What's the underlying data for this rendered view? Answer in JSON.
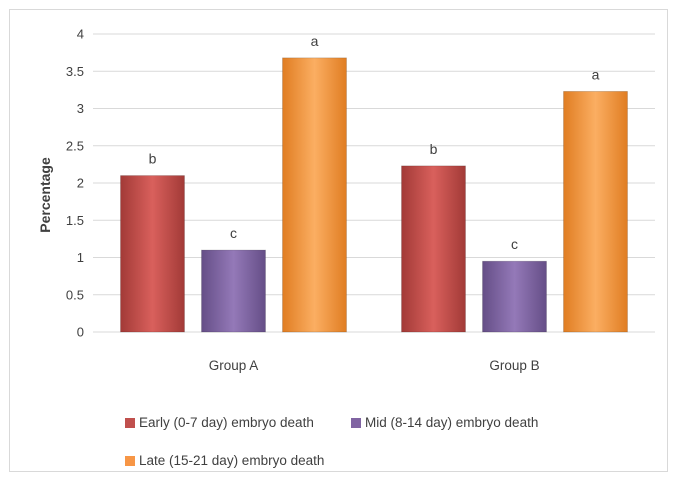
{
  "chart_data": {
    "type": "bar",
    "title": "",
    "xlabel": "",
    "ylabel": "Percentage",
    "ylim": [
      0,
      4
    ],
    "yticks": [
      "0",
      "0.5",
      "1",
      "1.5",
      "2",
      "2.5",
      "3",
      "3.5",
      "4"
    ],
    "grid": true,
    "legend_position": "bottom",
    "categories": [
      "Group A",
      "Group B"
    ],
    "series": [
      {
        "name": "Early (0-7 day) embryo death",
        "values": [
          2.1,
          2.23
        ],
        "labels": [
          "b",
          "b"
        ],
        "color": "#c0504d"
      },
      {
        "name": "Mid  (8-14 day) embryo death",
        "values": [
          1.1,
          0.95
        ],
        "labels": [
          "c",
          "c"
        ],
        "color": "#8064a2"
      },
      {
        "name": "Late  (15-21 day) embryo death",
        "values": [
          3.68,
          3.23
        ],
        "labels": [
          "a",
          "a"
        ],
        "color": "#f79646"
      }
    ]
  }
}
